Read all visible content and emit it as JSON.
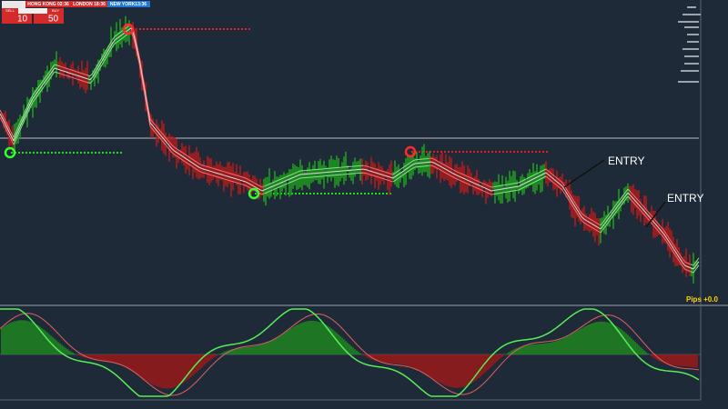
{
  "session_bar": {
    "hong_kong": "HONG KONG 02:36",
    "london": "LONDON 18:36",
    "new_york": "NEW YORK13:36"
  },
  "trade_panel": {
    "sell": "SELL",
    "buy": "BUY",
    "sell_lots": "10",
    "buy_lots": "50"
  },
  "annotations": [
    "ENTRY",
    "ENTRY"
  ],
  "pips": "Pips +0.0"
}
